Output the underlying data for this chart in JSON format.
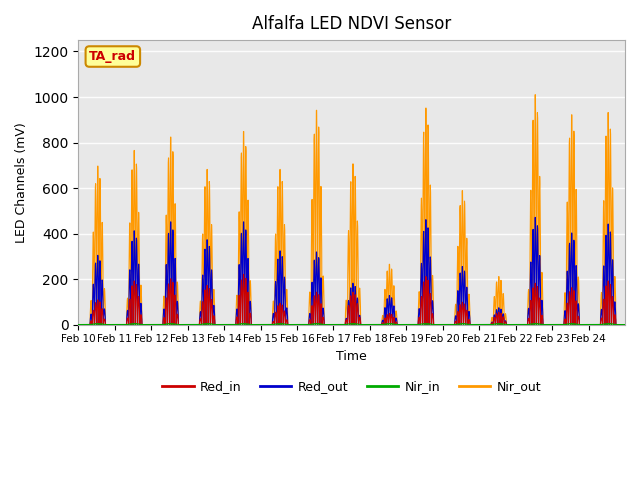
{
  "title": "Alfalfa LED NDVI Sensor",
  "xlabel": "Time",
  "ylabel": "LED Channels (mV)",
  "ylim": [
    0,
    1250
  ],
  "yticks": [
    0,
    200,
    400,
    600,
    800,
    1000,
    1200
  ],
  "background_color": "#e8e8e8",
  "legend_colors": [
    "#cc0000",
    "#0000cc",
    "#00aa00",
    "#ff9900"
  ],
  "xtick_labels": [
    "Feb 10",
    "Feb 11",
    "Feb 12",
    "Feb 13",
    "Feb 14",
    "Feb 15",
    "Feb 16",
    "Feb 17",
    "Feb 18",
    "Feb 19",
    "Feb 20",
    "Feb 21",
    "Feb 22",
    "Feb 23",
    "Feb 24"
  ],
  "annotation_text": "TA_rad",
  "annotation_bg": "#ffff99",
  "annotation_border": "#cc8800",
  "day_peaks_nir_out": [
    710,
    780,
    840,
    695,
    865,
    695,
    960,
    720,
    270,
    970,
    600,
    215,
    1030,
    940,
    950
  ],
  "day_peaks_red_out": [
    310,
    420,
    460,
    380,
    460,
    330,
    325,
    185,
    130,
    470,
    260,
    75,
    480,
    410,
    450
  ],
  "day_peaks_red_in": [
    110,
    195,
    205,
    175,
    225,
    95,
    145,
    145,
    50,
    215,
    100,
    55,
    185,
    165,
    195
  ]
}
